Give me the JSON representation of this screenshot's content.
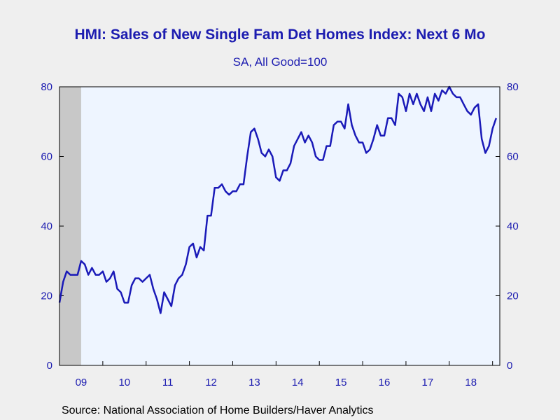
{
  "title": "HMI: Sales of New Single Fam Det Homes Index: Next 6 Mo",
  "subtitle": "SA, All Good=100",
  "source": "Source:  National Association of Home Builders/Haver Analytics",
  "colors": {
    "line": "#1a1ab8",
    "plot_bg": "#eef5ff",
    "recession": "#c8c8c8",
    "text": "#1c1cb0"
  },
  "chart_data": {
    "type": "line",
    "title": "HMI: Sales of New Single Fam Det Homes Index: Next 6 Mo",
    "subtitle": "SA, All Good=100",
    "ylim": [
      0,
      80
    ],
    "yticks": [
      0,
      20,
      40,
      60,
      80
    ],
    "x_range": [
      "2009-01",
      "2019-03"
    ],
    "x_tick_labels": [
      "09",
      "10",
      "11",
      "12",
      "13",
      "14",
      "15",
      "16",
      "17",
      "18"
    ],
    "recession_shading": [
      "2009-01",
      "2009-06"
    ],
    "grid": false,
    "series": [
      {
        "frequency": "monthly",
        "start": "2009-01",
        "values": [
          18,
          24,
          27,
          26,
          26,
          26,
          30,
          29,
          26,
          28,
          26,
          26,
          27,
          24,
          25,
          27,
          22,
          21,
          18,
          18,
          23,
          25,
          25,
          24,
          25,
          26,
          22,
          19,
          15,
          21,
          19,
          17,
          23,
          25,
          26,
          29,
          34,
          35,
          31,
          34,
          33,
          43,
          43,
          51,
          51,
          52,
          50,
          49,
          50,
          50,
          52,
          52,
          60,
          67,
          68,
          65,
          61,
          60,
          62,
          60,
          54,
          53,
          56,
          56,
          58,
          63,
          65,
          67,
          64,
          66,
          64,
          60,
          59,
          59,
          63,
          63,
          69,
          70,
          70,
          68,
          75,
          69,
          66,
          64,
          64,
          61,
          62,
          65,
          69,
          66,
          66,
          71,
          71,
          69,
          78,
          77,
          73,
          78,
          75,
          78,
          75,
          73,
          77,
          73,
          78,
          76,
          79,
          78,
          80,
          78,
          77,
          77,
          75,
          73,
          72,
          74,
          75,
          65,
          61,
          63,
          68,
          71
        ]
      }
    ]
  }
}
